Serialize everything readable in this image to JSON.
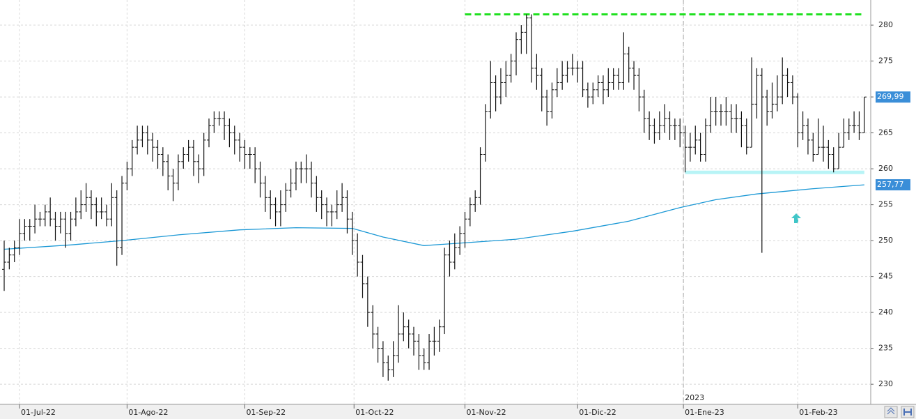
{
  "chart_data": {
    "type": "ohlc",
    "x": [
      "2022-06-28",
      "2022-06-29",
      "2022-06-30",
      "2022-07-01",
      "2022-07-04",
      "2022-07-05",
      "2022-07-06",
      "2022-07-07",
      "2022-07-08",
      "2022-07-11",
      "2022-07-12",
      "2022-07-13",
      "2022-07-14",
      "2022-07-15",
      "2022-07-18",
      "2022-07-19",
      "2022-07-20",
      "2022-07-21",
      "2022-07-22",
      "2022-07-25",
      "2022-07-26",
      "2022-07-27",
      "2022-07-28",
      "2022-07-29",
      "2022-08-01",
      "2022-08-02",
      "2022-08-03",
      "2022-08-04",
      "2022-08-05",
      "2022-08-08",
      "2022-08-09",
      "2022-08-10",
      "2022-08-11",
      "2022-08-12",
      "2022-08-15",
      "2022-08-16",
      "2022-08-17",
      "2022-08-18",
      "2022-08-19",
      "2022-08-22",
      "2022-08-23",
      "2022-08-24",
      "2022-08-25",
      "2022-08-26",
      "2022-08-29",
      "2022-08-30",
      "2022-08-31",
      "2022-09-01",
      "2022-09-02",
      "2022-09-05",
      "2022-09-06",
      "2022-09-07",
      "2022-09-08",
      "2022-09-09",
      "2022-09-12",
      "2022-09-13",
      "2022-09-14",
      "2022-09-15",
      "2022-09-16",
      "2022-09-19",
      "2022-09-20",
      "2022-09-21",
      "2022-09-22",
      "2022-09-23",
      "2022-09-26",
      "2022-09-27",
      "2022-09-28",
      "2022-09-29",
      "2022-09-30",
      "2022-10-03",
      "2022-10-04",
      "2022-10-05",
      "2022-10-06",
      "2022-10-07",
      "2022-10-10",
      "2022-10-11",
      "2022-10-12",
      "2022-10-13",
      "2022-10-14",
      "2022-10-17",
      "2022-10-18",
      "2022-10-19",
      "2022-10-20",
      "2022-10-21",
      "2022-10-24",
      "2022-10-25",
      "2022-10-26",
      "2022-10-27",
      "2022-10-28",
      "2022-10-31",
      "2022-11-01",
      "2022-11-02",
      "2022-11-03",
      "2022-11-04",
      "2022-11-07",
      "2022-11-08",
      "2022-11-09",
      "2022-11-10",
      "2022-11-11",
      "2022-11-14",
      "2022-11-15",
      "2022-11-16",
      "2022-11-17",
      "2022-11-18",
      "2022-11-21",
      "2022-11-22",
      "2022-11-23",
      "2022-11-24",
      "2022-11-25",
      "2022-11-28",
      "2022-11-29",
      "2022-11-30",
      "2022-12-01",
      "2022-12-02",
      "2022-12-05",
      "2022-12-06",
      "2022-12-07",
      "2022-12-08",
      "2022-12-09",
      "2022-12-12",
      "2022-12-13",
      "2022-12-14",
      "2022-12-15",
      "2022-12-16",
      "2022-12-19",
      "2022-12-20",
      "2022-12-21",
      "2022-12-22",
      "2022-12-23",
      "2022-12-27",
      "2022-12-28",
      "2022-12-29",
      "2022-12-30",
      "2023-01-02",
      "2023-01-03",
      "2023-01-04",
      "2023-01-05",
      "2023-01-06",
      "2023-01-09",
      "2023-01-10",
      "2023-01-11",
      "2023-01-12",
      "2023-01-13",
      "2023-01-16",
      "2023-01-17",
      "2023-01-18",
      "2023-01-19",
      "2023-01-20",
      "2023-01-23",
      "2023-01-24",
      "2023-01-25",
      "2023-01-26",
      "2023-01-27",
      "2023-01-30",
      "2023-01-31",
      "2023-02-01",
      "2023-02-02",
      "2023-02-03",
      "2023-02-06",
      "2023-02-07",
      "2023-02-08",
      "2023-02-09",
      "2023-02-10",
      "2023-02-13",
      "2023-02-14",
      "2023-02-15",
      "2023-02-16",
      "2023-02-17",
      "2023-02-20"
    ],
    "open": [
      246,
      247,
      248,
      249,
      251,
      252,
      252,
      253,
      253,
      254,
      253,
      252,
      253,
      251,
      253,
      254,
      255,
      256,
      255,
      254,
      254,
      253,
      256,
      249,
      258,
      260,
      263,
      264,
      265,
      264,
      263,
      262,
      261,
      259,
      258,
      261,
      262,
      263,
      261,
      260,
      264,
      266,
      267,
      267,
      266,
      265,
      264,
      263,
      262,
      262,
      260,
      258,
      256,
      255,
      254,
      255,
      257,
      258,
      260,
      260,
      260,
      258,
      256,
      255,
      254,
      254,
      255,
      256,
      253,
      250,
      247,
      244,
      240,
      237,
      235,
      233,
      232,
      234,
      237,
      238,
      237,
      236,
      234,
      233,
      236,
      236,
      238,
      248,
      247,
      249,
      251,
      253,
      255,
      256,
      262,
      268,
      272,
      270,
      272,
      273,
      275,
      278,
      279,
      281,
      274,
      273,
      270,
      268,
      271,
      272,
      273,
      274,
      274,
      274,
      271,
      270,
      271,
      272,
      271,
      272,
      273,
      272,
      276,
      274,
      273,
      270,
      267,
      266,
      265,
      266,
      267,
      266,
      266,
      265,
      263,
      263,
      264,
      262,
      266,
      268,
      268,
      268,
      268,
      267,
      267,
      266,
      263,
      269,
      273,
      270,
      268,
      269,
      270,
      273,
      272,
      270,
      265,
      266,
      264,
      262,
      263,
      263,
      262,
      260,
      263,
      265,
      266,
      266,
      265
    ],
    "high": [
      250,
      249,
      250,
      253,
      253,
      253,
      255,
      254,
      255,
      256,
      254,
      254,
      254,
      254,
      256,
      257,
      258,
      257,
      256,
      256,
      255,
      258,
      257,
      259,
      261,
      264,
      266,
      266,
      266,
      265,
      264,
      263,
      262,
      260,
      262,
      263,
      264,
      264,
      262,
      265,
      267,
      268,
      268,
      268,
      267,
      266,
      265,
      264,
      263,
      263,
      261,
      259,
      257,
      256,
      257,
      258,
      260,
      261,
      261,
      262,
      261,
      259,
      257,
      256,
      255,
      257,
      258,
      257,
      254,
      251,
      248,
      245,
      241,
      238,
      236,
      234,
      236,
      241,
      240,
      239,
      238,
      237,
      235,
      237,
      238,
      239,
      249,
      250,
      251,
      252,
      254,
      256,
      257,
      263,
      269,
      275,
      273,
      274,
      275,
      276,
      279,
      280,
      281.5,
      281.5,
      276,
      274,
      271,
      272,
      274,
      275,
      275,
      276,
      275,
      275,
      272,
      272,
      273,
      273,
      274,
      274,
      274,
      279,
      277,
      275,
      274,
      271,
      268,
      267,
      268,
      269,
      268,
      267,
      267,
      266,
      265,
      266,
      265,
      267,
      270,
      270,
      269,
      270,
      269,
      269,
      268,
      267,
      275.5,
      274,
      274,
      271,
      272,
      273,
      275.5,
      274,
      273,
      270.5,
      268,
      267,
      265,
      267,
      266,
      264,
      263,
      265,
      267,
      267,
      268,
      268,
      270
    ],
    "low": [
      243,
      246,
      247,
      248,
      250,
      250,
      251,
      252,
      252,
      252,
      250,
      251,
      249,
      250,
      252,
      253,
      254,
      253,
      252,
      253,
      252,
      252,
      246.5,
      248,
      257,
      259,
      262,
      263,
      262,
      261,
      260,
      259,
      257,
      255.5,
      257,
      260,
      261,
      259,
      258,
      259,
      263,
      265,
      266,
      264,
      263,
      262,
      261,
      260,
      260,
      258,
      256,
      254,
      253,
      252,
      252,
      254,
      256,
      257,
      258,
      258,
      256,
      254,
      253,
      252,
      252,
      253,
      254,
      251,
      248,
      245,
      242,
      238,
      235,
      233,
      231,
      230.5,
      231,
      233,
      236,
      235,
      234,
      232,
      232,
      232,
      234,
      234.5,
      237,
      245,
      246,
      248,
      249,
      252,
      254,
      255,
      261,
      267,
      268,
      269,
      270,
      272,
      273,
      276,
      276,
      272,
      271,
      268,
      266,
      267,
      270,
      271,
      272,
      273,
      272,
      270,
      268.5,
      269,
      270,
      269,
      270,
      271,
      271,
      271,
      272,
      271,
      268,
      265,
      264,
      263.5,
      264,
      265,
      264,
      264,
      263,
      259.5,
      261,
      262,
      261,
      261,
      265,
      266,
      266,
      266,
      265,
      265,
      263,
      262,
      263,
      267,
      248.3,
      266,
      267,
      268,
      269,
      270,
      269,
      263,
      264,
      262,
      261,
      262,
      261,
      260,
      259.5,
      260,
      263,
      264,
      265,
      264,
      265
    ],
    "close": [
      247,
      248,
      249,
      251,
      252,
      252,
      253,
      253,
      254,
      253,
      252,
      253,
      251,
      253,
      254,
      255,
      256,
      255,
      254,
      254,
      253,
      256,
      249,
      258,
      260,
      263,
      264,
      265,
      264,
      263,
      262,
      261,
      259,
      258,
      261,
      262,
      263,
      261,
      260,
      264,
      266,
      267,
      267,
      266,
      265,
      264,
      263,
      262,
      262,
      260,
      258,
      256,
      255,
      254,
      255,
      257,
      258,
      260,
      260,
      260,
      258,
      256,
      255,
      254,
      254,
      255,
      256,
      253,
      250,
      247,
      244,
      240,
      237,
      235,
      233,
      232,
      234,
      237,
      238,
      237,
      236,
      234,
      233,
      236,
      236,
      238,
      248,
      247,
      249,
      251,
      253,
      255,
      256,
      262,
      268,
      272,
      270,
      272,
      273,
      275,
      278,
      279,
      281,
      274,
      273,
      270,
      268,
      271,
      272,
      273,
      274,
      274,
      274,
      271,
      270,
      271,
      272,
      271,
      272,
      273,
      272,
      276,
      274,
      273,
      270,
      267,
      266,
      265,
      266,
      267,
      266,
      266,
      265,
      263,
      263,
      264,
      262,
      266,
      268,
      268,
      268,
      268,
      267,
      267,
      266,
      263,
      269,
      273,
      270,
      268,
      269,
      270,
      273,
      272,
      270,
      265,
      266,
      264,
      262,
      263,
      263,
      262,
      260,
      263,
      265,
      266,
      266,
      265,
      269.99
    ],
    "bar_color": "#111111",
    "ma": {
      "color": "#1b98d5",
      "x": [
        "2022-06-28",
        "2022-07-15",
        "2022-07-29",
        "2022-08-15",
        "2022-08-31",
        "2022-09-15",
        "2022-09-30",
        "2022-10-10",
        "2022-10-20",
        "2022-11-15",
        "2022-11-30",
        "2022-12-15",
        "2022-12-30",
        "2023-01-10",
        "2023-01-20",
        "2023-02-05",
        "2023-02-20"
      ],
      "values": [
        248.8,
        249.4,
        250,
        250.8,
        251.5,
        251.8,
        251.7,
        250.5,
        249.3,
        250.2,
        251.3,
        252.7,
        254.6,
        255.7,
        256.5,
        257.2,
        257.77
      ]
    },
    "levels": [
      {
        "value": 281.5,
        "start": "2022-11-01",
        "end": "2023-02-20",
        "color": "#1fe01f",
        "style": "dashed"
      },
      {
        "value": 259.5,
        "start": "2023-01-02",
        "end": "2023-02-20",
        "color": "#b8f4f6",
        "style": "band"
      }
    ],
    "last_labels": [
      {
        "value": 269.99,
        "label": "269,99",
        "color": "#3a8ed8"
      },
      {
        "value": 257.77,
        "label": "257,77",
        "color": "#3a8ed8"
      }
    ],
    "year_marker": {
      "value": "2023-01-01",
      "label": "2023"
    },
    "ylim": [
      227.2,
      283.5
    ],
    "yticks": [
      230,
      235,
      240,
      245,
      250,
      255,
      260,
      265,
      270,
      275,
      280
    ],
    "xticks": [
      {
        "value": "2022-07-01",
        "label": "01-Jul-22"
      },
      {
        "value": "2022-08-01",
        "label": "01-Ago-22"
      },
      {
        "value": "2022-09-01",
        "label": "01-Sep-22"
      },
      {
        "value": "2022-10-01",
        "label": "01-Oct-22"
      },
      {
        "value": "2022-11-01",
        "label": "01-Nov-22"
      },
      {
        "value": "2022-12-01",
        "label": "01-Dic-22"
      },
      {
        "value": "2023-01-01",
        "label": "01-Ene-23"
      },
      {
        "value": "2023-02-01",
        "label": "01-Feb-23"
      }
    ],
    "grid": true
  }
}
